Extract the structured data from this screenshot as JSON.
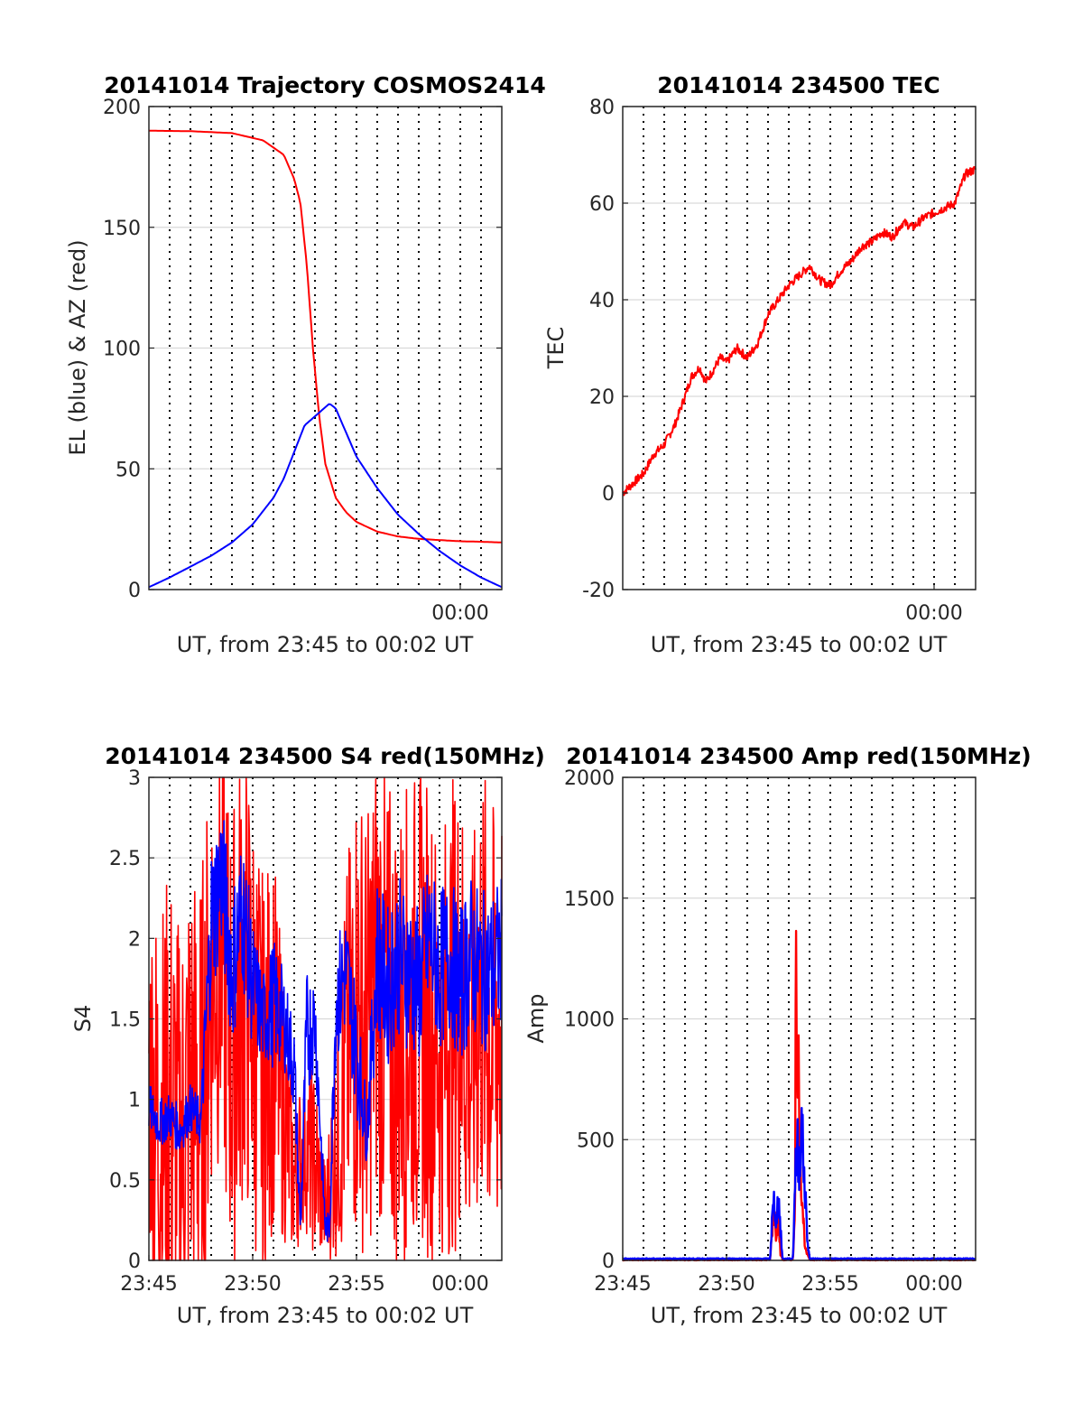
{
  "colors": {
    "red": "#ff0000",
    "blue": "#0000ff",
    "grid": "#d9d9d9",
    "vgrid": "#000000",
    "axis": "#262626"
  },
  "chart_data": [
    {
      "id": "trajectory",
      "type": "line",
      "title": "20141014 Trajectory COSMOS2414",
      "xlabel": "UT, from 23:45 to 00:02 UT",
      "ylabel": "EL (blue) & AZ (red)",
      "xlim": [
        0,
        17
      ],
      "ylim": [
        0,
        200
      ],
      "yticks": [
        0,
        50,
        100,
        150,
        200
      ],
      "xtick_labels": [
        {
          "x": 15,
          "label": "00:00"
        }
      ],
      "series": [
        {
          "color": "red",
          "x": [
            0,
            2,
            4,
            5.5,
            6.5,
            7,
            7.3,
            7.6,
            7.9,
            8.2,
            8.5,
            9,
            9.5,
            10,
            11,
            12,
            13,
            14,
            15,
            16,
            17
          ],
          "y": [
            190,
            189.8,
            189,
            186,
            180,
            170,
            160,
            135,
            100,
            72,
            52,
            38,
            32,
            28,
            24,
            22,
            21,
            20.5,
            20,
            19.8,
            19.5
          ]
        },
        {
          "color": "blue",
          "x": [
            0,
            1,
            2,
            3,
            4,
            5,
            6,
            6.5,
            7,
            7.5,
            8.7,
            9,
            9.5,
            10,
            11,
            12,
            13,
            14,
            15,
            16,
            17
          ],
          "y": [
            1,
            5,
            9.5,
            14,
            19.5,
            27,
            38,
            46,
            57,
            68,
            77,
            75,
            65,
            55,
            42,
            31,
            23,
            16,
            10,
            5,
            1
          ]
        }
      ]
    },
    {
      "id": "tec",
      "type": "line",
      "title": "20141014 234500 TEC",
      "xlabel": "UT, from 23:45 to 00:02 UT",
      "ylabel": "TEC",
      "xlim": [
        0,
        17
      ],
      "ylim": [
        -20,
        80
      ],
      "yticks": [
        -20,
        0,
        20,
        40,
        60,
        80
      ],
      "xtick_labels": [
        {
          "x": 15,
          "label": "00:00"
        }
      ],
      "series": [
        {
          "color": "red",
          "x": [
            0,
            0.5,
            1,
            1.5,
            2,
            2.5,
            3,
            3.3,
            3.7,
            4,
            4.3,
            4.7,
            5,
            5.5,
            6,
            6.5,
            7,
            7.5,
            8,
            8.5,
            9,
            9.5,
            10,
            10.5,
            11,
            11.5,
            12,
            12.5,
            13,
            13.5,
            14,
            14.5,
            15,
            15.5,
            16,
            16.5,
            17
          ],
          "y": [
            0,
            2,
            4,
            8,
            10,
            14,
            20,
            24,
            26,
            23,
            25,
            28,
            27,
            30,
            28,
            31,
            37,
            40,
            43,
            45,
            47,
            44,
            43,
            46,
            48,
            51,
            52,
            54,
            53,
            56,
            55,
            57,
            58,
            59,
            60,
            66,
            67
          ]
        }
      ]
    },
    {
      "id": "s4",
      "type": "line",
      "title": "20141014 234500 S4 red(150MHz)",
      "xlabel": "UT, from 23:45 to 00:02 UT",
      "ylabel": "S4",
      "xlim": [
        0,
        17
      ],
      "ylim": [
        0,
        3
      ],
      "yticks": [
        0,
        0.5,
        1,
        1.5,
        2,
        2.5,
        3
      ],
      "xtick_labels": [
        {
          "x": 0,
          "label": "23:45"
        },
        {
          "x": 5,
          "label": "23:50"
        },
        {
          "x": 10,
          "label": "23:55"
        },
        {
          "x": 15,
          "label": "00:00"
        }
      ],
      "series": [
        {
          "color": "red",
          "x": [
            0,
            0.5,
            1,
            1.5,
            2,
            2.5,
            3,
            3.5,
            4,
            4.5,
            5,
            5.5,
            6,
            6.5,
            7,
            7.5,
            8,
            8.5,
            9,
            9.5,
            10,
            10.5,
            11,
            11.5,
            12,
            12.5,
            13,
            13.5,
            14,
            14.5,
            15,
            15.5,
            16,
            16.5,
            17
          ],
          "y": [
            1.2,
            0.8,
            1.0,
            0.7,
            1.1,
            0.9,
            1.8,
            2.0,
            1.3,
            1.8,
            1.5,
            1.1,
            1.4,
            0.9,
            0.5,
            0.7,
            0.6,
            0.3,
            0.7,
            1.2,
            1.6,
            1.4,
            1.8,
            1.5,
            1.4,
            1.5,
            1.6,
            1.5,
            1.3,
            1.5,
            1.6,
            1.2,
            1.7,
            1.4,
            1.5
          ],
          "spread": [
            1.2,
            1.4,
            1.5,
            1.4,
            1.5,
            1.5,
            1.4,
            1.4,
            1.5,
            1.5,
            1.4,
            1.3,
            1.2,
            0.8,
            0.5,
            0.5,
            0.6,
            0.3,
            0.7,
            1.2,
            1.5,
            1.4,
            1.5,
            1.5,
            1.5,
            1.5,
            1.5,
            1.5,
            1.3,
            1.5,
            1.5,
            1.2,
            1.5,
            1.4,
            1.5
          ]
        },
        {
          "color": "blue",
          "x": [
            0,
            0.5,
            1,
            1.5,
            2,
            2.5,
            3,
            3.5,
            4,
            4.5,
            5,
            5.5,
            6,
            6.5,
            7,
            7.3,
            7.6,
            8,
            8.5,
            8.7,
            9,
            9.5,
            10,
            10.5,
            11,
            11.5,
            12,
            12.5,
            13,
            13.5,
            14,
            14.5,
            15,
            15.5,
            16,
            16.5,
            17
          ],
          "y": [
            0.95,
            0.85,
            0.9,
            0.8,
            0.95,
            0.85,
            2.1,
            2.4,
            1.8,
            2.2,
            1.7,
            1.5,
            1.6,
            1.5,
            1.2,
            0.2,
            1.4,
            1.5,
            0.2,
            0.2,
            1.6,
            1.8,
            1.3,
            0.8,
            1.9,
            1.7,
            1.9,
            1.8,
            1.7,
            2.0,
            1.8,
            1.9,
            1.7,
            1.9,
            1.8,
            1.8,
            1.9
          ],
          "spread": [
            0.15,
            0.15,
            0.15,
            0.15,
            0.15,
            0.15,
            0.5,
            0.5,
            0.5,
            0.5,
            0.4,
            0.3,
            0.4,
            0.3,
            0.3,
            0.1,
            0.4,
            0.3,
            0.1,
            0.1,
            0.4,
            0.4,
            0.4,
            0.2,
            0.5,
            0.5,
            0.5,
            0.5,
            0.5,
            0.5,
            0.5,
            0.5,
            0.5,
            0.5,
            0.5,
            0.5,
            0.5
          ]
        }
      ]
    },
    {
      "id": "amp",
      "type": "line",
      "title": "20141014 234500 Amp red(150MHz)",
      "xlabel": "UT, from 23:45 to 00:02 UT",
      "ylabel": "Amp",
      "xlim": [
        0,
        17
      ],
      "ylim": [
        0,
        2000
      ],
      "yticks": [
        0,
        500,
        1000,
        1500,
        2000
      ],
      "xtick_labels": [
        {
          "x": 0,
          "label": "23:45"
        },
        {
          "x": 5,
          "label": "23:50"
        },
        {
          "x": 10,
          "label": "23:55"
        },
        {
          "x": 15,
          "label": "00:00"
        }
      ],
      "series": [
        {
          "color": "red",
          "x": [
            0,
            7.1,
            7.2,
            7.3,
            7.4,
            7.5,
            7.6,
            7.7,
            8.2,
            8.3,
            8.35,
            8.4,
            8.45,
            8.5,
            8.6,
            8.7,
            8.8,
            9,
            17
          ],
          "y": [
            0,
            0,
            150,
            250,
            100,
            200,
            30,
            0,
            0,
            300,
            1560,
            800,
            1300,
            600,
            400,
            200,
            50,
            0,
            0
          ]
        },
        {
          "color": "blue",
          "x": [
            0,
            7.1,
            7.2,
            7.3,
            7.4,
            7.5,
            7.6,
            7.7,
            8.2,
            8.3,
            8.4,
            8.5,
            8.6,
            8.7,
            8.8,
            8.9,
            9,
            17
          ],
          "y": [
            5,
            5,
            200,
            290,
            180,
            320,
            150,
            5,
            5,
            400,
            580,
            450,
            680,
            500,
            300,
            100,
            5,
            5
          ]
        }
      ]
    }
  ]
}
